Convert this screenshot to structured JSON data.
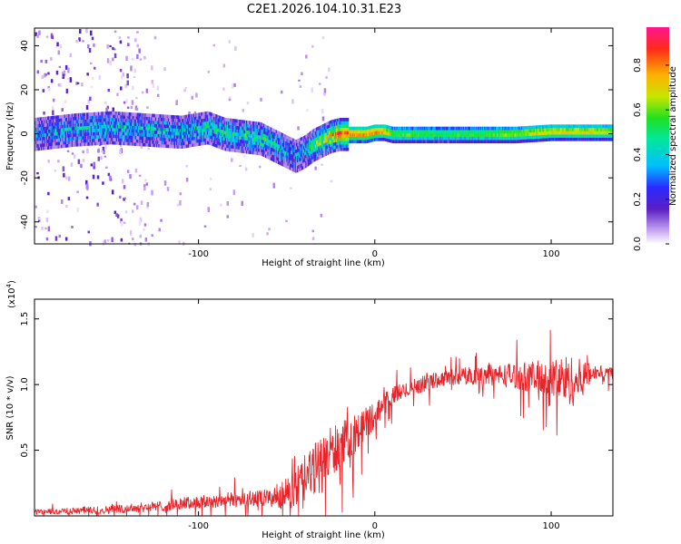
{
  "figure": {
    "title": "C2E1.2026.104.10.31.E23"
  },
  "colors": {
    "series": "#e8242a",
    "background": "#ffffff",
    "axis": "#000000"
  },
  "chart_data": [
    {
      "type": "heatmap",
      "name": "spectrogram",
      "xlabel": "Height of straight line (km)",
      "ylabel": "Frequency (Hz)",
      "xlim": [
        -193,
        135
      ],
      "ylim": [
        -50,
        48
      ],
      "xticks": [
        -100,
        0,
        100
      ],
      "xtick_labels": [
        "-100",
        "0",
        "100"
      ],
      "yticks": [
        -40,
        -20,
        0,
        20,
        40
      ],
      "ytick_labels": [
        "-40",
        "-20",
        "0",
        "20",
        "40"
      ],
      "ridge": {
        "x": [
          -193,
          -170,
          -150,
          -130,
          -110,
          -95,
          -85,
          -75,
          -65,
          -55,
          -50,
          -45,
          -40,
          -35,
          -30,
          -25,
          -20,
          -15,
          -10,
          -5,
          0,
          5,
          10,
          20,
          40,
          60,
          80,
          100,
          120,
          135
        ],
        "y": [
          0,
          2,
          3,
          2,
          1,
          3,
          0,
          -1,
          -2,
          -6,
          -8,
          -10,
          -8,
          -5,
          -3,
          -1,
          0,
          0,
          0,
          0,
          1,
          1,
          0,
          0,
          0,
          0,
          0,
          1,
          1,
          1
        ],
        "amp": [
          0.3,
          0.4,
          0.4,
          0.4,
          0.4,
          0.45,
          0.5,
          0.5,
          0.5,
          0.45,
          0.4,
          0.35,
          0.4,
          0.55,
          0.65,
          0.75,
          0.9,
          0.9,
          0.9,
          0.9,
          0.9,
          0.85,
          0.65,
          0.65,
          0.6,
          0.65,
          0.7,
          0.8,
          0.8,
          0.75
        ]
      },
      "scatter_region": {
        "x_range": [
          -193,
          -25
        ],
        "y_range": [
          -50,
          48
        ],
        "amplitude": 0.1
      },
      "colorbar": {
        "label": "Normalized spectral amplitude",
        "range": [
          0,
          0.97
        ],
        "ticks": [
          0,
          0.2,
          0.4,
          0.6,
          0.8
        ],
        "tick_labels": [
          "0.0",
          "0.2",
          "0.4",
          "0.6",
          "0.8"
        ]
      }
    },
    {
      "type": "line",
      "name": "snr",
      "xlabel": "Height of straight line (km)",
      "ylabel": "SNR (10 * v/v)",
      "multiplier_label": "(x10",
      "multiplier_exponent": "4",
      "xlim": [
        -193,
        135
      ],
      "ylim": [
        0,
        1.65
      ],
      "xticks": [
        -100,
        0,
        100
      ],
      "xtick_labels": [
        "-100",
        "0",
        "100"
      ],
      "yticks": [
        0.5,
        1.0,
        1.5
      ],
      "ytick_labels": [
        "0.5",
        "1.0",
        "1.5"
      ],
      "envelope": {
        "x": [
          -193,
          -150,
          -120,
          -100,
          -80,
          -60,
          -50,
          -45,
          -40,
          -35,
          -30,
          -25,
          -20,
          -15,
          -10,
          -5,
          0,
          5,
          10,
          20,
          30,
          40,
          60,
          80,
          90,
          100,
          105,
          110,
          115,
          120,
          125,
          135
        ],
        "y": [
          0.03,
          0.05,
          0.08,
          0.11,
          0.13,
          0.14,
          0.18,
          0.22,
          0.3,
          0.36,
          0.42,
          0.5,
          0.55,
          0.6,
          0.65,
          0.72,
          0.78,
          0.85,
          0.92,
          0.98,
          1.02,
          1.06,
          1.08,
          1.08,
          1.07,
          1.06,
          1.06,
          1.05,
          1.04,
          1.08,
          1.1,
          1.1
        ],
        "noise": [
          0.02,
          0.03,
          0.04,
          0.05,
          0.06,
          0.07,
          0.12,
          0.15,
          0.18,
          0.2,
          0.22,
          0.2,
          0.18,
          0.16,
          0.14,
          0.12,
          0.1,
          0.08,
          0.07,
          0.06,
          0.06,
          0.06,
          0.07,
          0.1,
          0.12,
          0.14,
          0.18,
          0.2,
          0.18,
          0.1,
          0.05,
          0.05
        ]
      }
    }
  ]
}
